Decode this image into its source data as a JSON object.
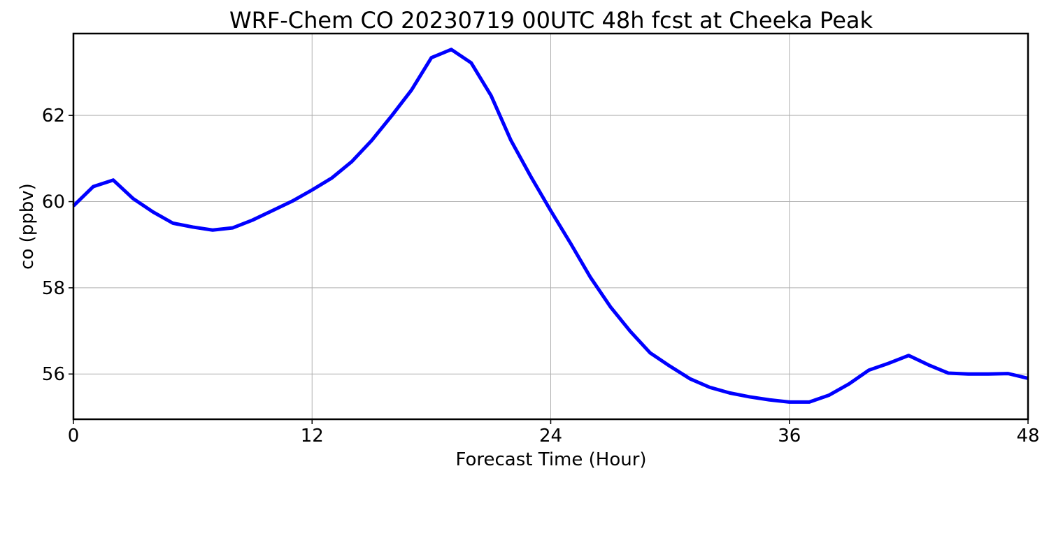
{
  "chart_data": {
    "type": "line",
    "title": "WRF-Chem CO  20230719 00UTC 48h fcst at Cheeka Peak",
    "xlabel": "Forecast Time (Hour)",
    "ylabel": "co  (ppbv)",
    "xlim": [
      0,
      48
    ],
    "ylim": [
      54.95,
      63.9
    ],
    "xticks": [
      0,
      12,
      24,
      36,
      48
    ],
    "xtick_labels": [
      "0",
      "12",
      "24",
      "36",
      "48"
    ],
    "yticks": [
      56,
      58,
      60,
      62
    ],
    "ytick_labels": [
      "56",
      "58",
      "60",
      "62"
    ],
    "grid": true,
    "series": [
      {
        "color": "#0000ff",
        "x": [
          0,
          1,
          2,
          3,
          4,
          5,
          6,
          7,
          8,
          9,
          10,
          11,
          12,
          13,
          14,
          15,
          16,
          17,
          18,
          19,
          20,
          21,
          22,
          23,
          24,
          25,
          26,
          27,
          28,
          29,
          30,
          31,
          32,
          33,
          34,
          35,
          36,
          37,
          38,
          39,
          40,
          41,
          42,
          43,
          44,
          45,
          46,
          47,
          48
        ],
        "y": [
          59.9,
          60.35,
          60.5,
          60.07,
          59.76,
          59.5,
          59.41,
          59.34,
          59.39,
          59.57,
          59.79,
          60.01,
          60.27,
          60.55,
          60.93,
          61.42,
          61.99,
          62.59,
          63.34,
          63.53,
          63.22,
          62.46,
          61.42,
          60.58,
          59.79,
          59.03,
          58.24,
          57.56,
          56.99,
          56.49,
          56.18,
          55.89,
          55.69,
          55.56,
          55.47,
          55.4,
          55.35,
          55.35,
          55.51,
          55.77,
          56.09,
          56.25,
          56.43,
          56.21,
          56.02,
          56.0,
          56.0,
          56.01,
          55.9
        ]
      }
    ]
  }
}
